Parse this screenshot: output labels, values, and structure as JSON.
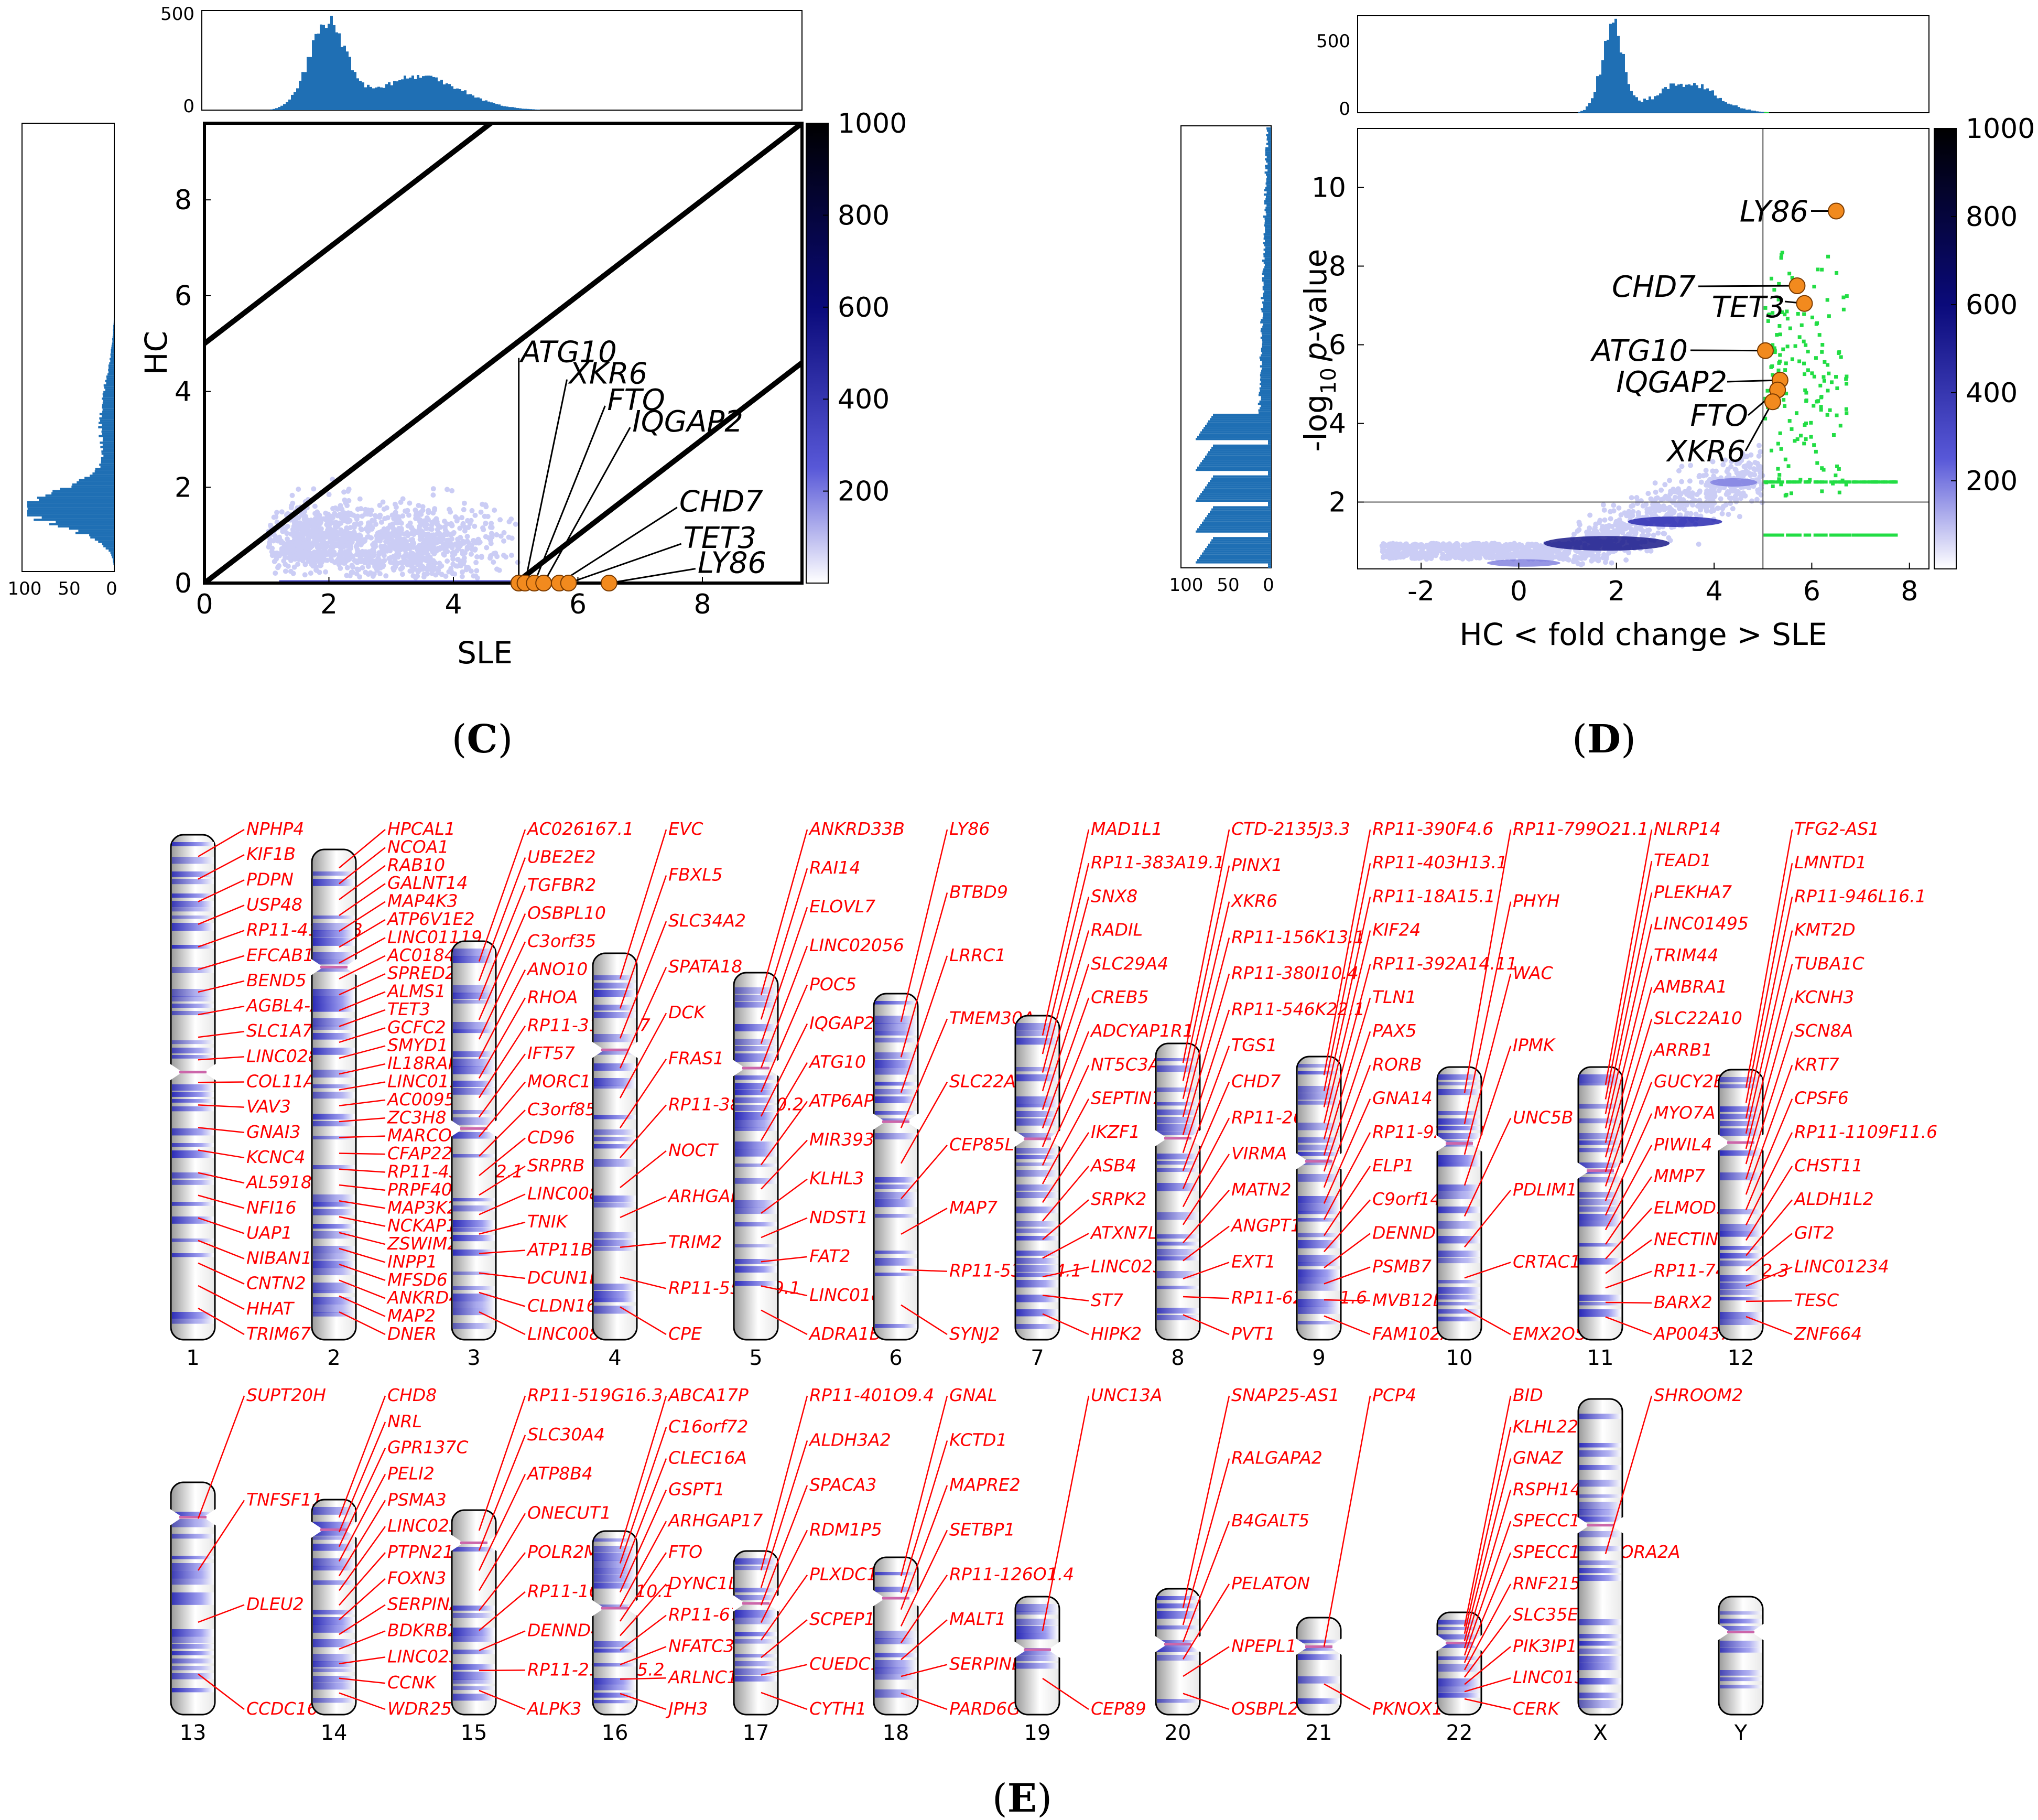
{
  "panels": {
    "C": {
      "letter": "C",
      "open": "(",
      "close": ")"
    },
    "D": {
      "letter": "D",
      "open": "(",
      "close": ")"
    },
    "E": {
      "letter": "E",
      "open": "(",
      "close": ")"
    }
  },
  "colors": {
    "hist": "#1f6fb4",
    "axis": "#000000",
    "density_light": "#cbcdf5",
    "density_dark": "#000060",
    "sig_green": "#22dd44",
    "highlight_orange": "#f28a1e",
    "gene_label_red": "#ff0000",
    "band_blue": "#3a3fd0",
    "centromere": "#cc66aa"
  },
  "chart_data": [
    {
      "id": "panel-C",
      "type": "scatter",
      "title": "",
      "xlabel": "SLE",
      "ylabel": "HC",
      "xlim": [
        0,
        9.6
      ],
      "ylim": [
        0,
        9.6
      ],
      "xticks": [
        "0",
        "2",
        "4",
        "6",
        "8"
      ],
      "yticks": [
        "0",
        "2",
        "4",
        "6",
        "8"
      ],
      "diagonals": [
        {
          "intercept": 5
        },
        {
          "intercept": 0
        },
        {
          "intercept": -5
        }
      ],
      "highlight_genes": [
        {
          "name": "ATG10",
          "x": 5.05,
          "y": 0.0
        },
        {
          "name": "XKR6",
          "x": 5.15,
          "y": 0.0
        },
        {
          "name": "FTO",
          "x": 5.3,
          "y": 0.0
        },
        {
          "name": "IQGAP2",
          "x": 5.45,
          "y": 0.0
        },
        {
          "name": "CHD7",
          "x": 5.7,
          "y": 0.0
        },
        {
          "name": "TET3",
          "x": 5.85,
          "y": 0.0
        },
        {
          "name": "LY86",
          "x": 6.5,
          "y": 0.0
        }
      ],
      "colorbar": {
        "ticks": [
          "200",
          "400",
          "600",
          "800",
          "1000"
        ],
        "max": 1000
      },
      "top_hist_ticks": [
        "0",
        "500"
      ],
      "left_hist_ticks": [
        "100",
        "50",
        "0"
      ]
    },
    {
      "id": "panel-D",
      "type": "scatter",
      "title": "",
      "xlabel": "HC < fold change > SLE",
      "ylabel_main": "-log",
      "ylabel_sub": "10",
      "ylabel_italic": "p",
      "ylabel_tail": "-value",
      "xlim": [
        -3.3,
        8.4
      ],
      "ylim": [
        0.3,
        11.5
      ],
      "xticks": [
        "-2",
        "0",
        "2",
        "4",
        "6",
        "8"
      ],
      "yticks": [
        "2",
        "4",
        "6",
        "8",
        "10"
      ],
      "thresholds": {
        "fold_change": 5,
        "neg_log10_p": 2
      },
      "highlight_genes": [
        {
          "name": "LY86",
          "x": 6.5,
          "y": 9.4
        },
        {
          "name": "CHD7",
          "x": 5.7,
          "y": 7.5
        },
        {
          "name": "TET3",
          "x": 5.85,
          "y": 7.05
        },
        {
          "name": "ATG10",
          "x": 5.05,
          "y": 5.85
        },
        {
          "name": "IQGAP2",
          "x": 5.35,
          "y": 5.1
        },
        {
          "name": "FTO",
          "x": 5.3,
          "y": 4.85
        },
        {
          "name": "XKR6",
          "x": 5.2,
          "y": 4.55
        }
      ],
      "colorbar": {
        "ticks": [
          "200",
          "400",
          "600",
          "800",
          "1000"
        ],
        "max": 1000
      },
      "top_hist_ticks": [
        "0",
        "500"
      ],
      "left_hist_ticks": [
        "100",
        "50",
        "0"
      ]
    },
    {
      "id": "panel-E",
      "type": "ideogram",
      "chromosomes": [
        {
          "name": "1",
          "genes": [
            "NPHP4",
            "KIF1B",
            "PDPN",
            "USP48",
            "RP11-415J8.3",
            "EFCAB14",
            "BEND5",
            "AGBL4-AS1",
            "SLC1A7",
            "LINC02801",
            "COL11A1",
            "VAV3",
            "GNAI3",
            "KCNC4",
            "AL591893.1",
            "NFI16",
            "UAP1",
            "NIBAN1",
            "CNTN2",
            "HHAT",
            "TRIM67"
          ]
        },
        {
          "name": "2",
          "genes": [
            "HPCAL1",
            "NCOA1",
            "RAB10",
            "GALNT14",
            "MAP4K3",
            "ATP6V1E2",
            "LINC01119",
            "AC018462.2",
            "SPRED2",
            "ALMS1",
            "TET3",
            "GCFC2",
            "SMYD1",
            "IL18RAP",
            "LINC01102",
            "AC009505.4",
            "ZC3H8",
            "MARCO",
            "CFAP221",
            "RP11-432O12.1",
            "PRPF40A",
            "MAP3K20",
            "NCKAP1",
            "ZSWIM2",
            "INPP1",
            "MFSD6",
            "ANKRD44",
            "MAP2",
            "DNER"
          ]
        },
        {
          "name": "3",
          "genes": [
            "AC026167.1",
            "UBE2E2",
            "TGFBR2",
            "OSBPL10",
            "C3orf35",
            "ANO10",
            "RHOA",
            "RP11-314A5.7",
            "IFT57",
            "MORC1",
            "C3orf85",
            "CD96",
            "SRPRB",
            "LINC00881",
            "TNIK",
            "ATP11B",
            "DCUN1D1",
            "CLDN16",
            "LINC00887"
          ]
        },
        {
          "name": "4",
          "genes": [
            "EVC",
            "FBXL5",
            "SLC34A2",
            "SPATA18",
            "DCK",
            "FRAS1",
            "RP11-381N20.2",
            "NOCT",
            "ARHGAP10",
            "TRIM2",
            "RP11-559F19.1",
            "CPE"
          ]
        },
        {
          "name": "5",
          "genes": [
            "ANKRD33B",
            "RAI14",
            "ELOVL7",
            "LINC02056",
            "POC5",
            "IQGAP2",
            "ATG10",
            "ATP6AP1L",
            "MIR3936HG",
            "KLHL3",
            "NDST1",
            "FAT2",
            "LINC01847",
            "ADRA1B"
          ]
        },
        {
          "name": "6",
          "genes": [
            "LY86",
            "BTBD9",
            "LRRC1",
            "TMEM30A",
            "SLC22A16",
            "CEP85L",
            "MAP7",
            "RP11-537P24.1",
            "SYNJ2"
          ]
        },
        {
          "name": "7",
          "genes": [
            "MAD1L1",
            "RP11-383A19.1",
            "SNX8",
            "RADIL",
            "SLC29A4",
            "CREB5",
            "ADCYAP1R1",
            "NT5C3A",
            "SEPTIN7",
            "IKZF1",
            "ASB4",
            "SRPK2",
            "ATXN7L1",
            "LINC02577",
            "ST7",
            "HIPK2"
          ]
        },
        {
          "name": "8",
          "genes": [
            "CTD-2135J3.3",
            "PINX1",
            "XKR6",
            "RP11-156K13.1",
            "RP11-380I10.4",
            "RP11-546K22.1",
            "TGS1",
            "CHD7",
            "RP11-26L20",
            "VIRMA",
            "MATN2",
            "ANGPT1",
            "EXT1",
            "RP11-622O11.6",
            "PVT1"
          ]
        },
        {
          "name": "9",
          "genes": [
            "RP11-390F4.6",
            "RP11-403H13.1",
            "RP11-18A15.1",
            "KIF24",
            "RP11-392A14.11",
            "TLN1",
            "PAX5",
            "RORB",
            "GNA14",
            "RP11-92C4.3",
            "ELP1",
            "C9orf147",
            "DENND1A",
            "PSMB7",
            "MVB12B",
            "FAM102A"
          ]
        },
        {
          "name": "10",
          "genes": [
            "RP11-799O21.1",
            "PHYH",
            "WAC",
            "IPMK",
            "UNC5B",
            "PDLIM1",
            "CRTAC1",
            "EMX2OS"
          ]
        },
        {
          "name": "11",
          "genes": [
            "NLRP14",
            "TEAD1",
            "PLEKHA7",
            "LINC01495",
            "TRIM44",
            "AMBRA1",
            "SLC22A10",
            "ARRB1",
            "GUCY2EP",
            "MYO7A",
            "PIWIL4",
            "MMP7",
            "ELMOD1",
            "NECTIN1",
            "RP11-744N12.3",
            "BARX2",
            "AP004372.1"
          ]
        },
        {
          "name": "12",
          "genes": [
            "TFG2-AS1",
            "LMNTD1",
            "RP11-946L16.1",
            "KMT2D",
            "TUBA1C",
            "KCNH3",
            "SCN8A",
            "KRT7",
            "CPSF6",
            "RP11-1109F11.6",
            "CHST11",
            "ALDH1L2",
            "GIT2",
            "LINC01234",
            "TESC",
            "ZNF664"
          ]
        },
        {
          "name": "13",
          "genes": [
            "SUPT20H",
            "TNFSF11",
            "DLEU2",
            "CCDC168"
          ]
        },
        {
          "name": "14",
          "genes": [
            "CHD8",
            "NRL",
            "GPR137C",
            "PELI2",
            "PSMA3",
            "LINC02316",
            "PTPN21",
            "FOXN3",
            "SERPINA5",
            "BDKRB2",
            "LINC02325",
            "CCNK",
            "WDR25"
          ]
        },
        {
          "name": "15",
          "genes": [
            "RP11-519G16.3",
            "SLC30A4",
            "ATP8B4",
            "ONECUT1",
            "POLR2M",
            "RP11-1069G10.1",
            "DENND4A",
            "RP11-210M15.2",
            "ALPK3"
          ]
        },
        {
          "name": "16",
          "genes": [
            "ABCA17P",
            "C16orf72",
            "CLEC16A",
            "GSPT1",
            "ARHGAP17",
            "FTO",
            "DYNC1LI2",
            "RP11-67A1.2",
            "NFATC3",
            "ARLNC1",
            "JPH3"
          ]
        },
        {
          "name": "17",
          "genes": [
            "RP11-401O9.4",
            "ALDH3A2",
            "SPACA3",
            "RDM1P5",
            "PLXDC1",
            "SCPEP1",
            "CUEDC1",
            "CYTH1"
          ]
        },
        {
          "name": "18",
          "genes": [
            "GNAL",
            "KCTD1",
            "MAPRE2",
            "SETBP1",
            "RP11-126O1.4",
            "MALT1",
            "SERPINB2",
            "PARD6G"
          ]
        },
        {
          "name": "19",
          "genes": [
            "UNC13A",
            "CEP89"
          ]
        },
        {
          "name": "20",
          "genes": [
            "SNAP25-AS1",
            "RALGAPA2",
            "B4GALT5",
            "PELATON",
            "NPEPL1",
            "OSBPL2"
          ]
        },
        {
          "name": "21",
          "genes": [
            "PCP4",
            "PKNOX1"
          ]
        },
        {
          "name": "22",
          "genes": [
            "BID",
            "KLHL22",
            "GNAZ",
            "RSPH14",
            "SPECC1L",
            "SPECC1L-ADORA2A",
            "RNF215",
            "SLC35E4",
            "PIK3IP1-DT",
            "LINC01399",
            "CERK"
          ]
        },
        {
          "name": "X",
          "genes": [
            "SHROOM2"
          ]
        },
        {
          "name": "Y",
          "genes": []
        }
      ]
    }
  ]
}
